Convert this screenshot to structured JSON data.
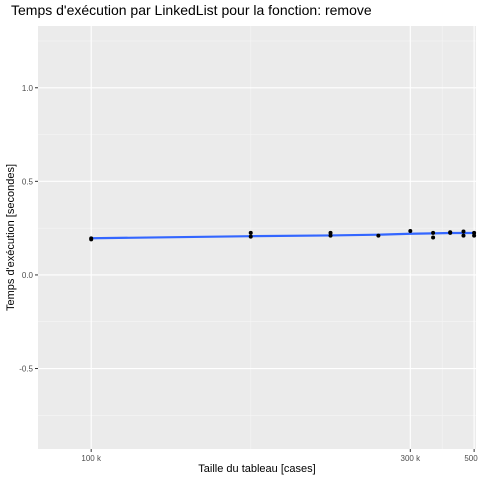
{
  "chart_data": {
    "type": "scatter",
    "title": "Temps d'exécution par LinkedList pour la fonction: remove",
    "xlabel": "Taille du tableau [cases]",
    "ylabel": "Temps d'exécution [secondes]",
    "xlim": [
      90000,
      510000
    ],
    "ylim": [
      -0.93,
      1.33
    ],
    "x_scale": "reciprocal",
    "x_ticks": [
      100000,
      300000,
      500000
    ],
    "x_tick_labels": [
      "100 k",
      "300 k",
      "500 k"
    ],
    "y_ticks": [
      -0.5,
      0.0,
      0.5,
      1.0
    ],
    "y_tick_labels": [
      "-0.5",
      "0.0",
      "0.5",
      "1.0"
    ],
    "grid": true,
    "legend": "none",
    "series": [
      {
        "mark": "point",
        "x": [
          100000,
          100000,
          150000,
          150000,
          200000,
          200000,
          250000,
          300000,
          350000,
          350000,
          400000,
          400000,
          450000,
          450000,
          500000,
          500000
        ],
        "y": [
          0.195,
          0.19,
          0.225,
          0.205,
          0.225,
          0.21,
          0.21,
          0.235,
          0.225,
          0.2,
          0.228,
          0.225,
          0.232,
          0.21,
          0.225,
          0.21
        ]
      },
      {
        "mark": "smooth",
        "x": [
          100000,
          150000,
          200000,
          250000,
          300000,
          350000,
          400000,
          450000,
          500000
        ],
        "y": [
          0.196,
          0.207,
          0.211,
          0.215,
          0.22,
          0.222,
          0.224,
          0.224,
          0.224
        ]
      }
    ],
    "colors": {
      "panel": "#ebebeb",
      "grid_major": "#ffffff",
      "points": "#000000",
      "smooth_line": "#3366ff"
    }
  }
}
